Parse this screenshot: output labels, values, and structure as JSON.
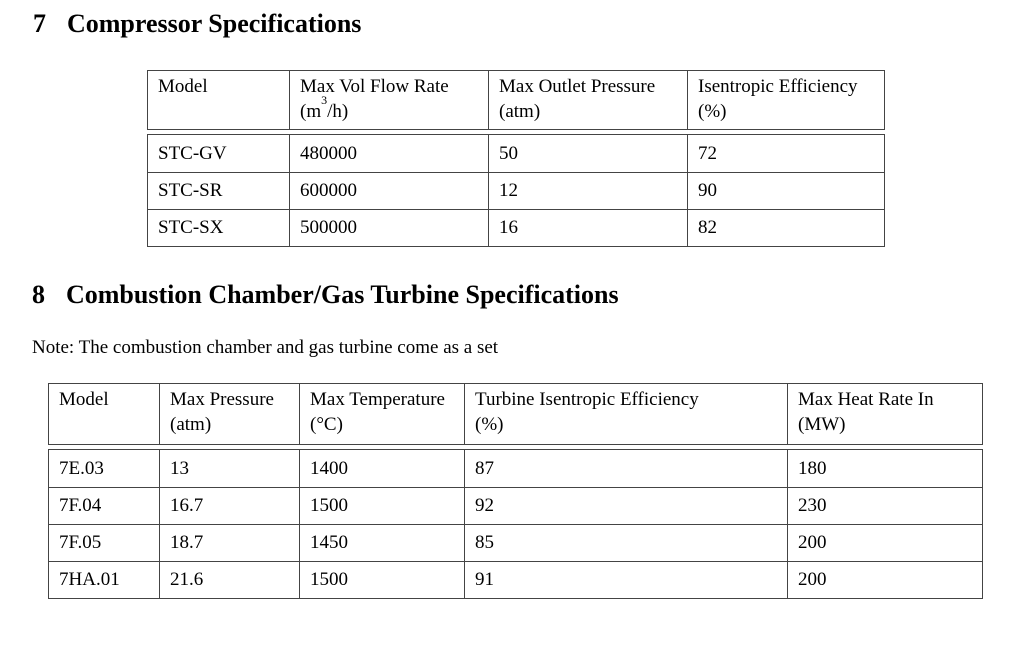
{
  "colors": {
    "text": "#000000",
    "border": "#444444",
    "background": "#ffffff"
  },
  "section7": {
    "number": "7",
    "title": "Compressor Specifications",
    "table": {
      "headers": [
        {
          "line1": "Model",
          "line2": ""
        },
        {
          "line1": "Max Vol Flow Rate",
          "line2_pre": "(m",
          "line2_sup": "3",
          "line2_post": "/h)"
        },
        {
          "line1": "Max Outlet Pressure",
          "line2": "(atm)"
        },
        {
          "line1": "Isentropic Efficiency",
          "line2": "(%)"
        }
      ],
      "rows": [
        [
          "STC-GV",
          "480000",
          "50",
          "72"
        ],
        [
          "STC-SR",
          "600000",
          "12",
          "90"
        ],
        [
          "STC-SX",
          "500000",
          "16",
          "82"
        ]
      ]
    }
  },
  "section8": {
    "number": "8",
    "title": "Combustion Chamber/Gas Turbine Specifications",
    "note": "Note: The combustion chamber and gas turbine come as a set",
    "table": {
      "headers": [
        {
          "line1": "Model",
          "line2": ""
        },
        {
          "line1": "Max Pressure",
          "line2": "(atm)"
        },
        {
          "line1": "Max Temperature",
          "line2": "(°C)"
        },
        {
          "line1": "Turbine Isentropic Efficiency",
          "line2": "(%)"
        },
        {
          "line1": "Max Heat Rate In",
          "line2": "(MW)"
        }
      ],
      "rows": [
        [
          "7E.03",
          "13",
          "1400",
          "87",
          "180"
        ],
        [
          "7F.04",
          "16.7",
          "1500",
          "92",
          "230"
        ],
        [
          "7F.05",
          "18.7",
          "1450",
          "85",
          "200"
        ],
        [
          "7HA.01",
          "21.6",
          "1500",
          "91",
          "200"
        ]
      ]
    }
  }
}
